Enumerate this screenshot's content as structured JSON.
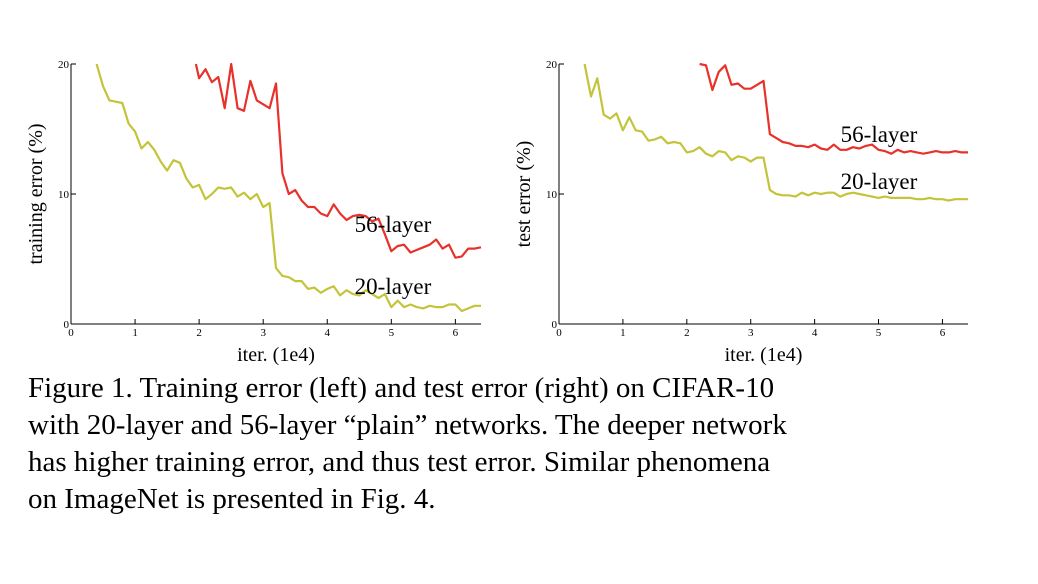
{
  "chart_data": [
    {
      "type": "line",
      "xlabel": "iter. (1e4)",
      "ylabel": "training error (%)",
      "xlim": [
        0,
        6.4
      ],
      "ylim": [
        0,
        20
      ],
      "xticks": [
        0,
        1,
        2,
        3,
        4,
        5,
        6
      ],
      "yticks": [
        0,
        10,
        20
      ],
      "grid": false,
      "series": [
        {
          "name": "56-layer",
          "color": "#e8312a",
          "x": [
            1.95,
            2.0,
            2.1,
            2.2,
            2.3,
            2.4,
            2.5,
            2.6,
            2.7,
            2.8,
            2.9,
            3.0,
            3.1,
            3.2,
            3.3,
            3.4,
            3.5,
            3.6,
            3.7,
            3.8,
            3.9,
            4.0,
            4.1,
            4.2,
            4.3,
            4.4,
            4.5,
            4.6,
            4.7,
            4.8,
            4.9,
            5.0,
            5.1,
            5.2,
            5.3,
            5.4,
            5.5,
            5.6,
            5.7,
            5.8,
            5.9,
            6.0,
            6.1,
            6.2,
            6.3,
            6.4
          ],
          "values": [
            20.0,
            18.9,
            19.6,
            18.6,
            19.0,
            16.6,
            20.0,
            16.6,
            16.4,
            18.7,
            17.2,
            16.9,
            16.6,
            18.5,
            11.6,
            10.0,
            10.3,
            9.5,
            9.0,
            9.0,
            8.5,
            8.3,
            9.2,
            8.5,
            8.0,
            8.3,
            8.4,
            8.3,
            7.9,
            8.1,
            6.9,
            5.6,
            6.0,
            6.1,
            5.5,
            5.7,
            5.9,
            6.1,
            6.5,
            5.8,
            6.1,
            5.1,
            5.2,
            5.8,
            5.8,
            5.9
          ]
        },
        {
          "name": "20-layer",
          "color": "#c3c43a",
          "x": [
            0.4,
            0.5,
            0.6,
            0.7,
            0.8,
            0.9,
            1.0,
            1.1,
            1.2,
            1.3,
            1.4,
            1.5,
            1.6,
            1.7,
            1.8,
            1.9,
            2.0,
            2.1,
            2.2,
            2.3,
            2.4,
            2.5,
            2.6,
            2.7,
            2.8,
            2.9,
            3.0,
            3.1,
            3.2,
            3.3,
            3.4,
            3.5,
            3.6,
            3.7,
            3.8,
            3.9,
            4.0,
            4.1,
            4.2,
            4.3,
            4.4,
            4.5,
            4.6,
            4.7,
            4.8,
            4.9,
            5.0,
            5.1,
            5.2,
            5.3,
            5.4,
            5.5,
            5.6,
            5.7,
            5.8,
            5.9,
            6.0,
            6.1,
            6.2,
            6.3,
            6.4
          ],
          "values": [
            20.0,
            18.3,
            17.2,
            17.1,
            17.0,
            15.4,
            14.8,
            13.5,
            14.0,
            13.4,
            12.5,
            11.8,
            12.6,
            12.4,
            11.2,
            10.5,
            10.7,
            9.6,
            10.0,
            10.5,
            10.4,
            10.5,
            9.8,
            10.1,
            9.6,
            10.0,
            9.0,
            9.3,
            4.3,
            3.7,
            3.6,
            3.3,
            3.3,
            2.7,
            2.8,
            2.4,
            2.7,
            2.9,
            2.2,
            2.6,
            2.3,
            2.2,
            2.6,
            2.3,
            2.0,
            2.3,
            1.3,
            1.8,
            1.3,
            1.5,
            1.3,
            1.2,
            1.4,
            1.3,
            1.3,
            1.5,
            1.5,
            1.0,
            1.2,
            1.4,
            1.4
          ]
        }
      ]
    },
    {
      "type": "line",
      "xlabel": "iter. (1e4)",
      "ylabel": "test error (%)",
      "xlim": [
        0,
        6.4
      ],
      "ylim": [
        0,
        20
      ],
      "xticks": [
        0,
        1,
        2,
        3,
        4,
        5,
        6
      ],
      "yticks": [
        0,
        10,
        20
      ],
      "grid": false,
      "series": [
        {
          "name": "56-layer",
          "color": "#e8312a",
          "x": [
            2.2,
            2.3,
            2.4,
            2.5,
            2.6,
            2.7,
            2.8,
            2.9,
            3.0,
            3.1,
            3.2,
            3.3,
            3.4,
            3.5,
            3.6,
            3.7,
            3.8,
            3.9,
            4.0,
            4.1,
            4.2,
            4.3,
            4.4,
            4.5,
            4.6,
            4.7,
            4.8,
            4.9,
            5.0,
            5.1,
            5.2,
            5.3,
            5.4,
            5.5,
            5.6,
            5.7,
            5.8,
            5.9,
            6.0,
            6.1,
            6.2,
            6.3,
            6.4
          ],
          "values": [
            20.0,
            19.9,
            18.0,
            19.4,
            19.9,
            18.4,
            18.5,
            18.1,
            18.1,
            18.4,
            18.7,
            14.6,
            14.3,
            14.0,
            13.9,
            13.7,
            13.7,
            13.6,
            13.8,
            13.5,
            13.4,
            13.8,
            13.4,
            13.4,
            13.6,
            13.5,
            13.7,
            13.8,
            13.4,
            13.3,
            13.1,
            13.4,
            13.2,
            13.3,
            13.2,
            13.1,
            13.2,
            13.3,
            13.2,
            13.2,
            13.3,
            13.2,
            13.2
          ]
        },
        {
          "name": "20-layer",
          "color": "#c3c43a",
          "x": [
            0.4,
            0.5,
            0.6,
            0.7,
            0.8,
            0.9,
            1.0,
            1.1,
            1.2,
            1.3,
            1.4,
            1.5,
            1.6,
            1.7,
            1.8,
            1.9,
            2.0,
            2.1,
            2.2,
            2.3,
            2.4,
            2.5,
            2.6,
            2.7,
            2.8,
            2.9,
            3.0,
            3.1,
            3.2,
            3.3,
            3.4,
            3.5,
            3.6,
            3.7,
            3.8,
            3.9,
            4.0,
            4.1,
            4.2,
            4.3,
            4.4,
            4.5,
            4.6,
            4.7,
            4.8,
            4.9,
            5.0,
            5.1,
            5.2,
            5.3,
            5.4,
            5.5,
            5.6,
            5.7,
            5.8,
            5.9,
            6.0,
            6.1,
            6.2,
            6.3,
            6.4
          ],
          "values": [
            20.0,
            17.5,
            18.9,
            16.1,
            15.8,
            16.2,
            14.9,
            15.9,
            14.9,
            14.8,
            14.1,
            14.2,
            14.4,
            13.9,
            14.0,
            13.9,
            13.2,
            13.3,
            13.6,
            13.1,
            12.9,
            13.3,
            13.2,
            12.6,
            12.9,
            12.8,
            12.5,
            12.8,
            12.8,
            10.3,
            10.0,
            9.9,
            9.9,
            9.8,
            10.1,
            9.9,
            10.1,
            10.0,
            10.1,
            10.1,
            9.8,
            10.0,
            10.1,
            10.0,
            9.9,
            9.8,
            9.7,
            9.8,
            9.7,
            9.7,
            9.7,
            9.7,
            9.6,
            9.6,
            9.7,
            9.6,
            9.6,
            9.5,
            9.6,
            9.6,
            9.6
          ]
        }
      ]
    }
  ],
  "caption": {
    "lines": [
      "Figure 1. Training error (left) and test error (right) on CIFAR-10",
      "with 20-layer and 56-layer “plain” networks. The deeper network",
      "has higher training error, and thus test error.  Similar phenomena",
      "on ImageNet is presented in Fig. 4."
    ]
  }
}
